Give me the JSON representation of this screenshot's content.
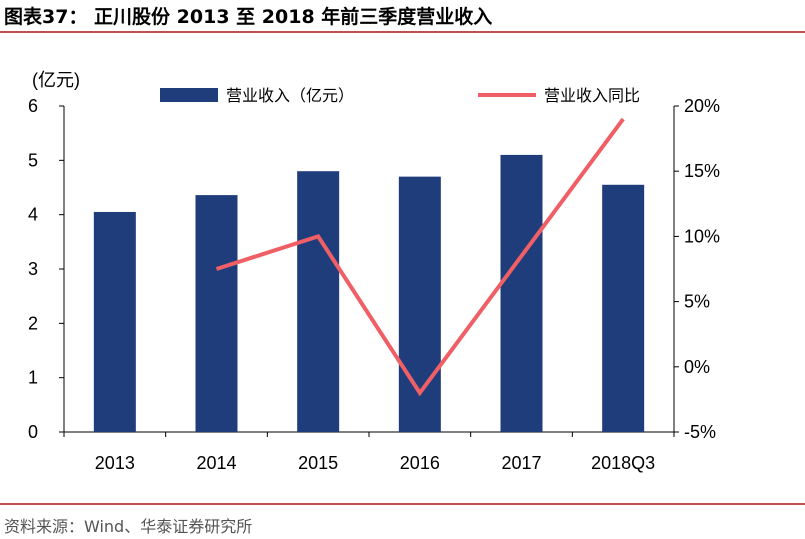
{
  "header": {
    "title": "图表37：  正川股份 2013 至 2018 年前三季度营业收入"
  },
  "footer": {
    "source": "资料来源：Wind、华泰证券研究所"
  },
  "colors": {
    "bar": "#1f3d7a",
    "line": "#ef5f65",
    "rule": "#c0504d"
  },
  "chart_data": {
    "type": "bar",
    "categories": [
      "2013",
      "2014",
      "2015",
      "2016",
      "2017",
      "2018Q3"
    ],
    "ylabel": "(亿元)",
    "ylim": [
      0,
      6
    ],
    "yticks": [
      "0",
      "1",
      "2",
      "3",
      "4",
      "5",
      "6"
    ],
    "y2lim": [
      -5,
      20
    ],
    "y2ticks": [
      "-5%",
      "0%",
      "5%",
      "10%",
      "15%",
      "20%"
    ],
    "legend_placement": "top",
    "series": [
      {
        "name": "营业收入（亿元）",
        "type": "bar",
        "axis": "left",
        "values": [
          4.05,
          4.36,
          4.8,
          4.7,
          5.1,
          4.55
        ]
      },
      {
        "name": "营业收入同比",
        "type": "line",
        "axis": "right",
        "values": [
          null,
          7.5,
          10.0,
          -2.0,
          8.5,
          19.0
        ]
      }
    ]
  }
}
